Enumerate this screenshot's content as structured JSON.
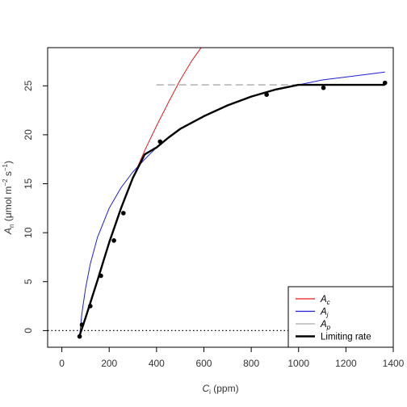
{
  "chart_data": {
    "type": "line",
    "xlabel": {
      "main": "C",
      "sub": "i",
      "tail": " (ppm)"
    },
    "ylabel": {
      "main": "A",
      "sub": "n",
      "mid": " (μmol m",
      "sup1": "−2",
      "mid2": " s",
      "sup2": "−1",
      "tail": ")"
    },
    "xlim": [
      -60,
      1400
    ],
    "ylim": [
      -1.7,
      28.9
    ],
    "x_ticks": [
      0,
      200,
      400,
      600,
      800,
      1000,
      1200,
      1400
    ],
    "y_ticks": [
      0,
      5,
      10,
      15,
      20,
      25
    ],
    "legend_position": "bottom-right",
    "series": [
      {
        "name": "A_c",
        "legend_main": "A",
        "legend_sub": "c",
        "color": "#e41a1c",
        "style": "solid",
        "x": [
          75,
          100,
          150,
          200,
          250,
          300,
          350,
          400,
          450,
          500,
          550,
          600,
          620
        ],
        "y": [
          -0.5,
          1.3,
          5.1,
          9.0,
          12.5,
          15.6,
          18.4,
          20.9,
          23.3,
          25.6,
          27.6,
          29.3,
          30.0
        ]
      },
      {
        "name": "A_j",
        "legend_main": "A",
        "legend_sub": "j",
        "color": "#1f1fd6",
        "style": "solid",
        "x": [
          75,
          85,
          100,
          120,
          150,
          200,
          250,
          300,
          350,
          400,
          450,
          500,
          600,
          700,
          800,
          900,
          1000,
          1100,
          1200,
          1365
        ],
        "y": [
          -0.5,
          1.8,
          4.3,
          6.8,
          9.5,
          12.5,
          14.6,
          16.2,
          17.5,
          18.7,
          19.7,
          20.6,
          21.9,
          23.0,
          23.9,
          24.6,
          25.1,
          25.6,
          25.9,
          26.4
        ]
      },
      {
        "name": "A_p",
        "legend_main": "A",
        "legend_sub": "p",
        "color": "#aaaaaa",
        "style": "dashed",
        "x": [
          400,
          1365
        ],
        "y": [
          25.1,
          25.1
        ]
      },
      {
        "name": "Limiting rate",
        "legend_main": "Limiting rate",
        "legend_sub": "",
        "color": "#000000",
        "style": "thick",
        "x": [
          75,
          100,
          150,
          200,
          250,
          300,
          350,
          385,
          400,
          450,
          500,
          600,
          700,
          800,
          900,
          1000,
          1025,
          1365
        ],
        "y": [
          -0.5,
          1.3,
          5.1,
          9.0,
          12.5,
          15.6,
          18.0,
          18.5,
          18.7,
          19.7,
          20.6,
          21.9,
          23.0,
          23.9,
          24.6,
          25.1,
          25.1,
          25.1
        ]
      }
    ],
    "points": {
      "x": [
        75,
        85,
        120,
        165,
        220,
        260,
        415,
        865,
        1105,
        1365
      ],
      "y": [
        -0.6,
        0.6,
        2.5,
        5.6,
        9.2,
        12.0,
        19.3,
        24.1,
        24.8,
        25.3
      ]
    },
    "reference_line": {
      "y": 0,
      "style": "dotted",
      "color": "#000000"
    }
  }
}
